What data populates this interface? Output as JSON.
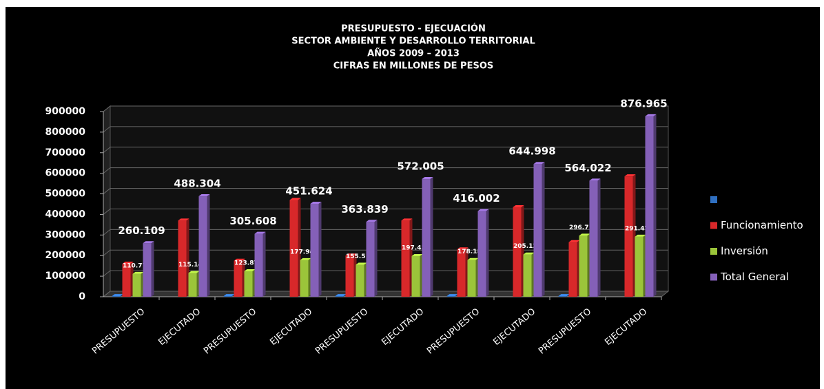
{
  "chart_data": {
    "type": "bar3d",
    "title": [
      "PRESUPUESTO  -  EJECUACIÓN",
      "SECTOR AMBIENTE Y DESARROLLO TERRITORIAL",
      "AÑOS 2009 – 2013",
      "CIFRAS EN MILLONES DE PESOS"
    ],
    "categories": [
      "PRESUPUESTO",
      "EJECUTADO",
      "PRESUPUESTO",
      "EJECUTADO",
      "PRESUPUESTO",
      "EJECUTADO",
      "PRESUPUESTO",
      "EJECUTADO",
      "PRESUPUESTO",
      "EJECUTADO"
    ],
    "series": [
      {
        "color": "#2f6fc0",
        "values": [
          3000,
          null,
          3000,
          null,
          3000,
          null,
          3000,
          null,
          3000,
          null
        ]
      },
      {
        "name": "Funcionamiento",
        "color": "#d8282a",
        "values": [
          160000,
          370000,
          175000,
          470000,
          200000,
          370000,
          230000,
          435000,
          265000,
          585000
        ]
      },
      {
        "name": "Inversión",
        "color": "#9bc53a",
        "values": [
          110774,
          115147,
          123870,
          177945,
          155518,
          197457,
          178188,
          205127,
          296715,
          291478
        ],
        "value_labels": [
          "110.774",
          "115.147",
          "123.870",
          "177.945",
          "155.518",
          "197.457",
          "178.188",
          "205.127",
          "296.715",
          "291.478"
        ]
      },
      {
        "name": "Total General",
        "color": "#8460b8",
        "values": [
          260109,
          488304,
          305608,
          451624,
          363839,
          572005,
          416002,
          644998,
          564022,
          876965
        ],
        "value_labels": [
          "260.109",
          "488.304",
          "305.608",
          "451.624",
          "363.839",
          "572.005",
          "416.002",
          "644.998",
          "564.022",
          "876.965"
        ]
      }
    ],
    "ylim": [
      0,
      900000
    ],
    "yticks": [
      0,
      100000,
      200000,
      300000,
      400000,
      500000,
      600000,
      700000,
      800000,
      900000
    ],
    "grid": true,
    "legend": "right"
  }
}
